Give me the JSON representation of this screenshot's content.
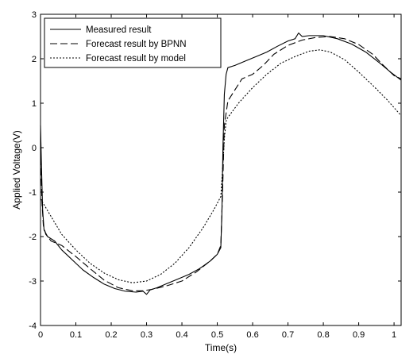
{
  "chart_data": {
    "type": "line",
    "title": "",
    "xlabel": "Time(s)",
    "ylabel": "Applied Voltage(V)",
    "xlim": [
      0,
      1.02
    ],
    "ylim": [
      -4,
      3
    ],
    "xticks": [
      0,
      0.1,
      0.2,
      0.3,
      0.4,
      0.5,
      0.6,
      0.7,
      0.8,
      0.9,
      1
    ],
    "xtick_labels": [
      "0",
      "0.1",
      "0.2",
      "0.3",
      "0.4",
      "0.5",
      "0.6",
      "0.7",
      "0.8",
      "0.9",
      "1"
    ],
    "yticks": [
      -4,
      -3,
      -2,
      -1,
      0,
      1,
      2,
      3
    ],
    "ytick_labels": [
      "-4",
      "-3",
      "-2",
      "-1",
      "0",
      "1",
      "2",
      "3"
    ],
    "grid": false,
    "legend_position": "top-left",
    "series": [
      {
        "name": "Measured result",
        "style": "solid",
        "color": "#000000",
        "points": [
          [
            0,
            0.5
          ],
          [
            0.003,
            -0.5
          ],
          [
            0.006,
            -1.4
          ],
          [
            0.01,
            -1.85
          ],
          [
            0.02,
            -2.0
          ],
          [
            0.04,
            -2.1
          ],
          [
            0.06,
            -2.3
          ],
          [
            0.08,
            -2.45
          ],
          [
            0.1,
            -2.6
          ],
          [
            0.12,
            -2.75
          ],
          [
            0.15,
            -2.92
          ],
          [
            0.18,
            -3.07
          ],
          [
            0.21,
            -3.17
          ],
          [
            0.24,
            -3.23
          ],
          [
            0.27,
            -3.25
          ],
          [
            0.29,
            -3.23
          ],
          [
            0.3,
            -3.3
          ],
          [
            0.31,
            -3.2
          ],
          [
            0.33,
            -3.15
          ],
          [
            0.36,
            -3.05
          ],
          [
            0.39,
            -2.95
          ],
          [
            0.42,
            -2.85
          ],
          [
            0.45,
            -2.72
          ],
          [
            0.48,
            -2.55
          ],
          [
            0.5,
            -2.4
          ],
          [
            0.51,
            -2.25
          ],
          [
            0.513,
            -1.5
          ],
          [
            0.516,
            0.0
          ],
          [
            0.52,
            1.2
          ],
          [
            0.525,
            1.65
          ],
          [
            0.53,
            1.8
          ],
          [
            0.55,
            1.85
          ],
          [
            0.58,
            1.95
          ],
          [
            0.61,
            2.05
          ],
          [
            0.64,
            2.15
          ],
          [
            0.67,
            2.28
          ],
          [
            0.7,
            2.4
          ],
          [
            0.72,
            2.45
          ],
          [
            0.73,
            2.58
          ],
          [
            0.74,
            2.5
          ],
          [
            0.76,
            2.52
          ],
          [
            0.8,
            2.52
          ],
          [
            0.84,
            2.45
          ],
          [
            0.88,
            2.33
          ],
          [
            0.92,
            2.15
          ],
          [
            0.96,
            1.9
          ],
          [
            0.99,
            1.7
          ],
          [
            1.02,
            1.52
          ]
        ]
      },
      {
        "name": "Forecast result by BPNN",
        "style": "dashed",
        "color": "#000000",
        "points": [
          [
            0,
            0.0
          ],
          [
            0.004,
            -1.2
          ],
          [
            0.008,
            -1.75
          ],
          [
            0.015,
            -1.95
          ],
          [
            0.03,
            -2.1
          ],
          [
            0.06,
            -2.2
          ],
          [
            0.1,
            -2.45
          ],
          [
            0.14,
            -2.72
          ],
          [
            0.18,
            -2.98
          ],
          [
            0.22,
            -3.15
          ],
          [
            0.26,
            -3.22
          ],
          [
            0.29,
            -3.22
          ],
          [
            0.32,
            -3.18
          ],
          [
            0.36,
            -3.1
          ],
          [
            0.4,
            -3.0
          ],
          [
            0.44,
            -2.8
          ],
          [
            0.48,
            -2.55
          ],
          [
            0.5,
            -2.4
          ],
          [
            0.51,
            -2.2
          ],
          [
            0.515,
            -1.0
          ],
          [
            0.52,
            0.5
          ],
          [
            0.53,
            1.05
          ],
          [
            0.55,
            1.3
          ],
          [
            0.57,
            1.55
          ],
          [
            0.6,
            1.65
          ],
          [
            0.63,
            1.85
          ],
          [
            0.66,
            2.1
          ],
          [
            0.7,
            2.3
          ],
          [
            0.74,
            2.42
          ],
          [
            0.78,
            2.48
          ],
          [
            0.82,
            2.5
          ],
          [
            0.86,
            2.45
          ],
          [
            0.9,
            2.32
          ],
          [
            0.94,
            2.1
          ],
          [
            0.97,
            1.85
          ],
          [
            1.0,
            1.62
          ],
          [
            1.02,
            1.55
          ]
        ]
      },
      {
        "name": "Forecast result by model",
        "style": "dotted",
        "color": "#000000",
        "points": [
          [
            0,
            -1.15
          ],
          [
            0.03,
            -1.55
          ],
          [
            0.06,
            -1.95
          ],
          [
            0.1,
            -2.3
          ],
          [
            0.14,
            -2.6
          ],
          [
            0.18,
            -2.82
          ],
          [
            0.22,
            -2.97
          ],
          [
            0.26,
            -3.04
          ],
          [
            0.3,
            -3.0
          ],
          [
            0.34,
            -2.85
          ],
          [
            0.38,
            -2.6
          ],
          [
            0.42,
            -2.25
          ],
          [
            0.46,
            -1.8
          ],
          [
            0.49,
            -1.4
          ],
          [
            0.51,
            -1.1
          ],
          [
            0.515,
            -0.5
          ],
          [
            0.52,
            0.2
          ],
          [
            0.525,
            0.6
          ],
          [
            0.53,
            0.68
          ],
          [
            0.56,
            1.0
          ],
          [
            0.6,
            1.35
          ],
          [
            0.64,
            1.65
          ],
          [
            0.68,
            1.9
          ],
          [
            0.72,
            2.05
          ],
          [
            0.76,
            2.17
          ],
          [
            0.79,
            2.2
          ],
          [
            0.82,
            2.15
          ],
          [
            0.86,
            1.98
          ],
          [
            0.9,
            1.7
          ],
          [
            0.94,
            1.4
          ],
          [
            0.98,
            1.08
          ],
          [
            1.02,
            0.72
          ]
        ]
      }
    ]
  }
}
